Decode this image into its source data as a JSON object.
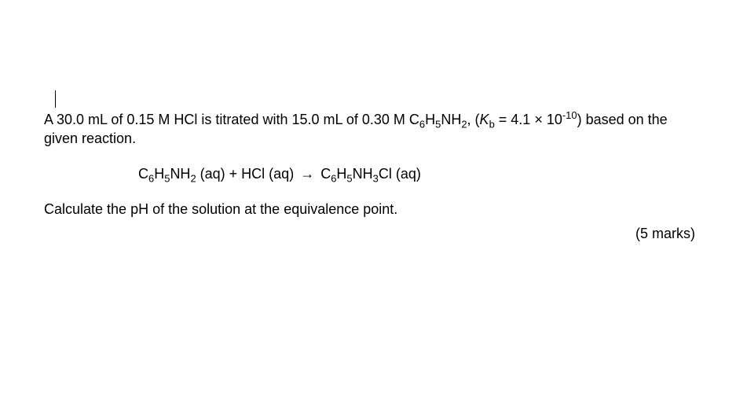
{
  "problem": {
    "line1_part1": "A 30.0 mL of 0.15 M HCl is titrated with 15.0 mL of 0.30 M C",
    "line1_sub1": "6",
    "line1_part2": "H",
    "line1_sub2": "5",
    "line1_part3": "NH",
    "line1_sub3": "2",
    "line1_part4": ", (",
    "line1_kb_k": "K",
    "line1_kb_b": "b",
    "line1_part5": " = 4.1 × 10",
    "line1_sup": "-10",
    "line1_part6": ") based on the given reaction."
  },
  "equation": {
    "r1_p1": "C",
    "r1_s1": "6",
    "r1_p2": "H",
    "r1_s2": "5",
    "r1_p3": "NH",
    "r1_s3": "2",
    "r1_p4": " (aq)  +  HCl (aq)",
    "arrow": "→",
    "r2_p1": "C",
    "r2_s1": "6",
    "r2_p2": "H",
    "r2_s2": "5",
    "r2_p3": "NH",
    "r2_s3": "3",
    "r2_p4": "Cl (aq)"
  },
  "question": "Calculate the pH of the solution at the equivalence point.",
  "marks": "(5 marks)",
  "style": {
    "font_family": "Arial",
    "font_size_pt": 14,
    "text_color": "#000000",
    "background_color": "#ffffff"
  }
}
